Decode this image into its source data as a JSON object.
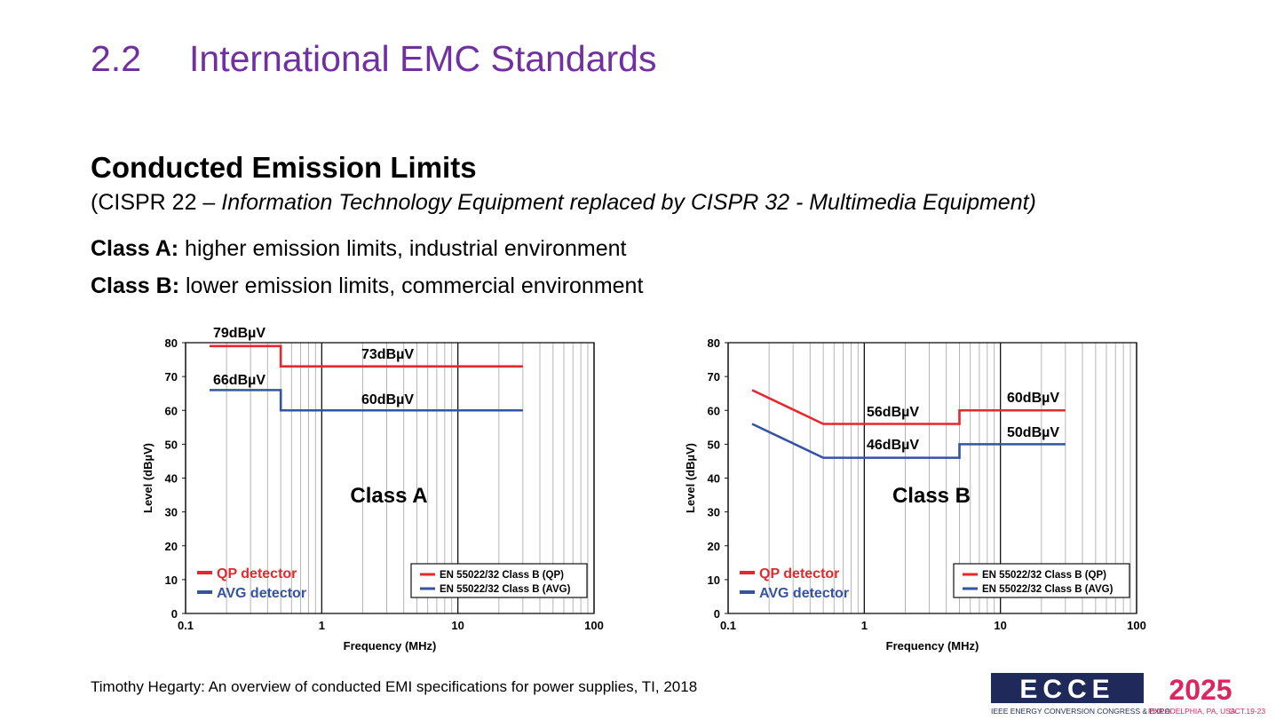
{
  "slide": {
    "number": "2.2",
    "title": "International EMC Standards",
    "heading": "Conducted Emission Limits",
    "subtitle_plain": "(CISPR 22 – ",
    "subtitle_italic": "Information Technology Equipment replaced by CISPR 32 - Multimedia Equipment)",
    "classes": [
      {
        "term": "Class A:",
        "text": " higher emission limits, industrial environment"
      },
      {
        "term": "Class B:",
        "text": " lower emission limits, commercial environment"
      }
    ],
    "citation": "Timothy Hegarty: An overview of conducted EMI specifications for power supplies, TI, 2018",
    "logo": {
      "mark": "ECCE",
      "year": "2025",
      "name": "IEEE ENERGY CONVERSION CONGRESS & EXPO",
      "place": "PHILADELPHIA, PA, USA",
      "dates": "OCT.19-23"
    }
  },
  "chart_data": [
    {
      "type": "line",
      "label": "Class A",
      "x_label": "Frequency (MHz)",
      "y_label": "Level (dBµV)",
      "log_x": true,
      "grid": "x",
      "minor_grid": true,
      "legend": "lower right",
      "xlim": [
        0.1,
        100
      ],
      "xticks": [
        0.1,
        1,
        10,
        100
      ],
      "ylim": [
        0,
        80
      ],
      "yticks": [
        0,
        10,
        20,
        30,
        40,
        50,
        60,
        70,
        80
      ],
      "detector_labels": [
        "QP detector",
        "AVG detector"
      ],
      "annotations": [
        "79dBµV",
        "73dBµV",
        "66dBµV",
        "60dBµV"
      ],
      "series": [
        {
          "name": "EN 55022/32 Class B (QP)",
          "color": "#e8262d",
          "x": [
            0.15,
            0.5,
            0.5,
            30
          ],
          "values": [
            79,
            79,
            73,
            73
          ]
        },
        {
          "name": "EN 55022/32 Class B (AVG)",
          "color": "#3553a4",
          "x": [
            0.15,
            0.5,
            0.5,
            30
          ],
          "values": [
            66,
            66,
            60,
            60
          ]
        }
      ]
    },
    {
      "type": "line",
      "label": "Class B",
      "x_label": "Frequency (MHz)",
      "y_label": "Level (dBµV)",
      "log_x": true,
      "grid": "x",
      "minor_grid": true,
      "legend": "lower right",
      "xlim": [
        0.1,
        100
      ],
      "xticks": [
        0.1,
        1,
        10,
        100
      ],
      "ylim": [
        0,
        80
      ],
      "yticks": [
        0,
        10,
        20,
        30,
        40,
        50,
        60,
        70,
        80
      ],
      "detector_labels": [
        "QP detector",
        "AVG detector"
      ],
      "annotations": [
        "56dBµV",
        "60dBµV",
        "46dBµV",
        "50dBµV"
      ],
      "series": [
        {
          "name": "EN 55022/32 Class B (QP)",
          "color": "#e8262d",
          "x": [
            0.15,
            0.5,
            5,
            5,
            30
          ],
          "values": [
            66,
            56,
            56,
            60,
            60
          ]
        },
        {
          "name": "EN 55022/32 Class B (AVG)",
          "color": "#3553a4",
          "x": [
            0.15,
            0.5,
            5,
            5,
            30
          ],
          "values": [
            56,
            46,
            46,
            50,
            50
          ]
        }
      ]
    }
  ]
}
